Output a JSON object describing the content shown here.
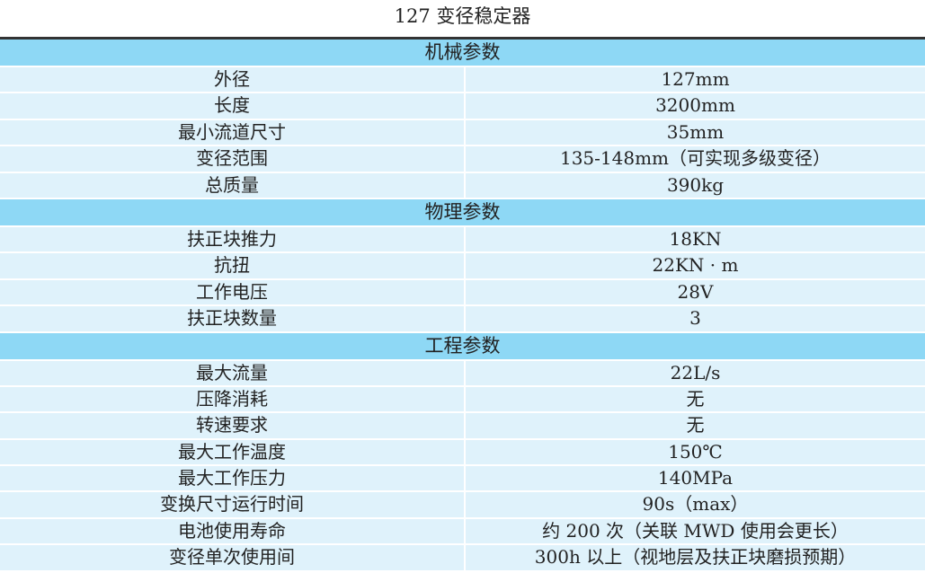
{
  "title": "127 变径稳定器",
  "sections": [
    {
      "header": "机械参数",
      "rows": [
        {
          "k": "外径",
          "v": "127mm"
        },
        {
          "k": "长度",
          "v": "3200mm"
        },
        {
          "k": "最小流道尺寸",
          "v": "35mm"
        },
        {
          "k": "变径范围",
          "v": "135-148mm（可实现多级变径）"
        },
        {
          "k": "总质量",
          "v": "390kg"
        }
      ]
    },
    {
      "header": "物理参数",
      "rows": [
        {
          "k": "扶正块推力",
          "v": "18KN"
        },
        {
          "k": "抗扭",
          "v": "22KN · m"
        },
        {
          "k": "工作电压",
          "v": "28V"
        },
        {
          "k": "扶正块数量",
          "v": "3"
        }
      ]
    },
    {
      "header": "工程参数",
      "rows": [
        {
          "k": "最大流量",
          "v": "22L/s"
        },
        {
          "k": "压降消耗",
          "v": "无"
        },
        {
          "k": "转速要求",
          "v": "无"
        },
        {
          "k": "最大工作温度",
          "v": "150℃"
        },
        {
          "k": "最大工作压力",
          "v": "140MPa"
        },
        {
          "k": "变换尺寸运行时间",
          "v": "90s（max）"
        },
        {
          "k": "电池使用寿命",
          "v": "约 200 次（关联 MWD 使用会更长）"
        },
        {
          "k": "变径单次使用间",
          "v": "300h 以上（视地层及扶正块磨损预期）"
        }
      ]
    }
  ],
  "colors": {
    "section_bg": "#8ed8f5",
    "row_bg": "#dff2fb",
    "rule": "#333333"
  }
}
